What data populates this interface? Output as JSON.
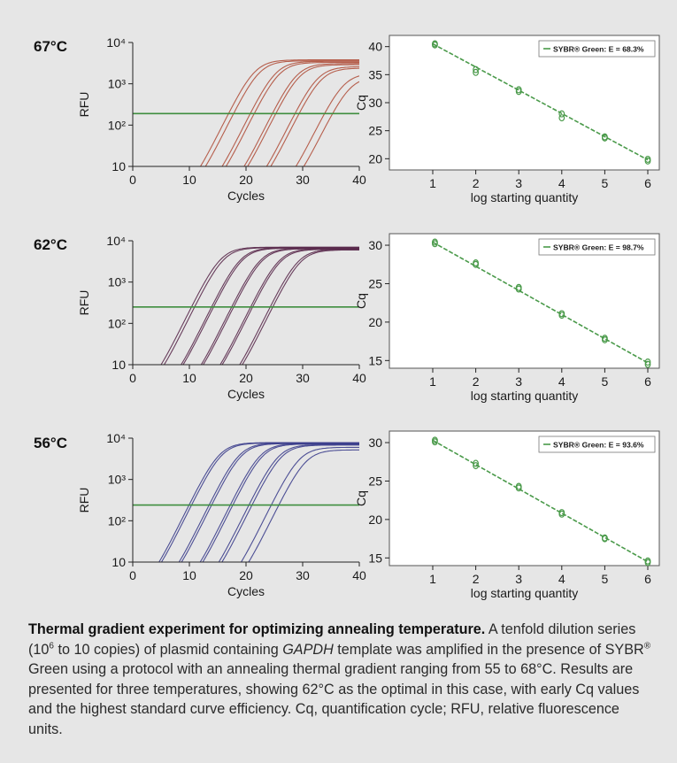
{
  "chart_data": [
    {
      "type": "line",
      "panel_label": "67°C",
      "xlabel": "Cycles",
      "ylabel": "RFU",
      "xlim": [
        0,
        40
      ],
      "xticks": [
        "0",
        "10",
        "20",
        "30",
        "40"
      ],
      "yscale": "log",
      "ylim": [
        10,
        10000
      ],
      "yticks": [
        "10",
        "10²",
        "10³",
        "10⁴"
      ],
      "threshold": 190,
      "series_color": "#b0503c",
      "curves": [
        {
          "midpoint": 21.5,
          "plateau": 3800
        },
        {
          "midpoint": 22.3,
          "plateau": 3600
        },
        {
          "midpoint": 25.2,
          "plateau": 3500
        },
        {
          "midpoint": 25.8,
          "plateau": 3300
        },
        {
          "midpoint": 28.9,
          "plateau": 3100
        },
        {
          "midpoint": 29.4,
          "plateau": 2900
        },
        {
          "midpoint": 32.6,
          "plateau": 2600
        },
        {
          "midpoint": 33.2,
          "plateau": 2400
        },
        {
          "midpoint": 37.2,
          "plateau": 1800
        },
        {
          "midpoint": 38.3,
          "plateau": 1500
        }
      ]
    },
    {
      "type": "scatter",
      "xlabel": "log starting quantity",
      "ylabel": "Cq",
      "xlim": [
        1,
        6
      ],
      "xticks": [
        "1",
        "2",
        "3",
        "4",
        "5",
        "6"
      ],
      "ylim": [
        18,
        42
      ],
      "yticks": [
        "20",
        "25",
        "30",
        "35",
        "40"
      ],
      "legend": "SYBR® Green: E = 68.3%",
      "legend_position": "top-right",
      "series_color": "#4a9a4a",
      "fit": [
        [
          1,
          40.5
        ],
        [
          6,
          19.8
        ]
      ],
      "points": [
        [
          1.05,
          40.5
        ],
        [
          1.05,
          40.3
        ],
        [
          2,
          35.9
        ],
        [
          2,
          35.4
        ],
        [
          3,
          32.3
        ],
        [
          3,
          32.0
        ],
        [
          4,
          28.0
        ],
        [
          4,
          27.3
        ],
        [
          5,
          23.9
        ],
        [
          5,
          23.7
        ],
        [
          6,
          19.9
        ],
        [
          6,
          19.6
        ]
      ]
    },
    {
      "type": "line",
      "panel_label": "62°C",
      "xlabel": "Cycles",
      "ylabel": "RFU",
      "xlim": [
        0,
        40
      ],
      "xticks": [
        "0",
        "10",
        "20",
        "30",
        "40"
      ],
      "yscale": "log",
      "ylim": [
        10,
        10000
      ],
      "yticks": [
        "10",
        "10²",
        "10³",
        "10⁴"
      ],
      "threshold": 250,
      "series_color": "#5a2a4c",
      "curves": [
        {
          "midpoint": 15.5,
          "plateau": 7000
        },
        {
          "midpoint": 16.0,
          "plateau": 6800
        },
        {
          "midpoint": 19.0,
          "plateau": 6800
        },
        {
          "midpoint": 19.3,
          "plateau": 6600
        },
        {
          "midpoint": 22.5,
          "plateau": 6600
        },
        {
          "midpoint": 22.8,
          "plateau": 6400
        },
        {
          "midpoint": 25.8,
          "plateau": 6400
        },
        {
          "midpoint": 26.1,
          "plateau": 6200
        },
        {
          "midpoint": 29.2,
          "plateau": 6200
        },
        {
          "midpoint": 29.6,
          "plateau": 6000
        }
      ]
    },
    {
      "type": "scatter",
      "xlabel": "log starting quantity",
      "ylabel": "Cq",
      "xlim": [
        1,
        6
      ],
      "xticks": [
        "1",
        "2",
        "3",
        "4",
        "5",
        "6"
      ],
      "ylim": [
        14,
        31.5
      ],
      "yticks": [
        "15",
        "20",
        "25",
        "30"
      ],
      "legend": "SYBR® Green: E = 98.7%",
      "legend_position": "top-right",
      "series_color": "#4a9a4a",
      "fit": [
        [
          1,
          30.4
        ],
        [
          6,
          14.7
        ]
      ],
      "points": [
        [
          1.05,
          30.4
        ],
        [
          1.05,
          30.2
        ],
        [
          2,
          27.7
        ],
        [
          2,
          27.5
        ],
        [
          3,
          24.5
        ],
        [
          3,
          24.3
        ],
        [
          4,
          21.1
        ],
        [
          4,
          20.9
        ],
        [
          5,
          17.9
        ],
        [
          5,
          17.7
        ],
        [
          6,
          14.8
        ],
        [
          6,
          14.5
        ]
      ]
    },
    {
      "type": "line",
      "panel_label": "56°C",
      "xlabel": "Cycles",
      "ylabel": "RFU",
      "xlim": [
        0,
        40
      ],
      "xticks": [
        "0",
        "10",
        "20",
        "30",
        "40"
      ],
      "yscale": "log",
      "ylim": [
        10,
        10000
      ],
      "yticks": [
        "10",
        "10²",
        "10³",
        "10⁴"
      ],
      "threshold": 240,
      "series_color": "#3c3e8c",
      "curves": [
        {
          "midpoint": 15.3,
          "plateau": 7800
        },
        {
          "midpoint": 15.7,
          "plateau": 7600
        },
        {
          "midpoint": 18.8,
          "plateau": 7600
        },
        {
          "midpoint": 19.2,
          "plateau": 7400
        },
        {
          "midpoint": 22.5,
          "plateau": 7400
        },
        {
          "midpoint": 22.9,
          "plateau": 7200
        },
        {
          "midpoint": 25.7,
          "plateau": 7000
        },
        {
          "midpoint": 26.2,
          "plateau": 6800
        },
        {
          "midpoint": 29.4,
          "plateau": 6000
        },
        {
          "midpoint": 30.5,
          "plateau": 5200
        }
      ]
    },
    {
      "type": "scatter",
      "xlabel": "log starting quantity",
      "ylabel": "Cq",
      "xlim": [
        1,
        6
      ],
      "xticks": [
        "1",
        "2",
        "3",
        "4",
        "5",
        "6"
      ],
      "ylim": [
        14,
        31.5
      ],
      "yticks": [
        "15",
        "20",
        "25",
        "30"
      ],
      "legend": "SYBR® Green: E = 93.6%",
      "legend_position": "top-right",
      "series_color": "#4a9a4a",
      "fit": [
        [
          1,
          30.3
        ],
        [
          6,
          14.5
        ]
      ],
      "points": [
        [
          1.05,
          30.3
        ],
        [
          1.05,
          30.1
        ],
        [
          2,
          27.3
        ],
        [
          2,
          27.0
        ],
        [
          3,
          24.3
        ],
        [
          3,
          24.1
        ],
        [
          4,
          20.9
        ],
        [
          4,
          20.7
        ],
        [
          5,
          17.6
        ],
        [
          5,
          17.5
        ],
        [
          6,
          14.6
        ],
        [
          6,
          14.4
        ]
      ]
    }
  ],
  "caption": {
    "title": "Thermal gradient experiment for optimizing annealing temperature.",
    "text_1": " A tenfold dilution series (10",
    "sup": "6",
    "text_2": " to 10 copies) of plasmid containing ",
    "gene": "GAPDH",
    "text_3": " template was amplified in the presence of SYBR",
    "reg": "®",
    "text_4": " Green using a protocol with an annealing thermal gradient ranging from 55 to 68°C. Results are presented for three temperatures, showing 62°C as the optimal in this case, with early Cq values and the highest standard curve efficiency. Cq, quantification cycle; RFU, relative fluorescence units."
  }
}
